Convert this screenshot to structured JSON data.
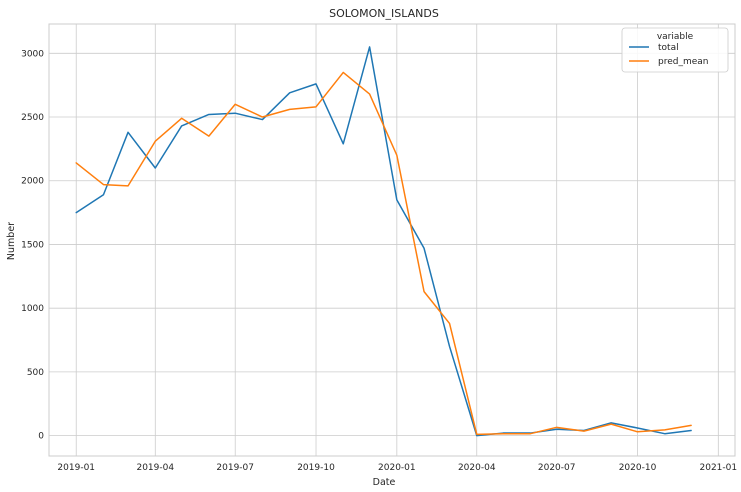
{
  "chart_data": {
    "type": "line",
    "title": "SOLOMON_ISLANDS",
    "xlabel": "Date",
    "ylabel": "Number",
    "x": [
      "2019-01",
      "2019-02",
      "2019-03",
      "2019-04",
      "2019-05",
      "2019-06",
      "2019-07",
      "2019-08",
      "2019-09",
      "2019-10",
      "2019-11",
      "2019-12",
      "2020-01",
      "2020-02",
      "2020-03",
      "2020-04",
      "2020-05",
      "2020-06",
      "2020-07",
      "2020-08",
      "2020-09",
      "2020-10",
      "2020-11",
      "2020-12"
    ],
    "series": [
      {
        "name": "total",
        "color": "#1f77b4",
        "values": [
          1750,
          1890,
          2380,
          2100,
          2430,
          2520,
          2530,
          2480,
          2690,
          2760,
          2290,
          3050,
          1850,
          1470,
          700,
          0,
          20,
          20,
          50,
          40,
          100,
          60,
          15,
          40
        ]
      },
      {
        "name": "pred_mean",
        "color": "#ff7f0e",
        "values": [
          2140,
          1970,
          1960,
          2310,
          2490,
          2350,
          2600,
          2500,
          2560,
          2580,
          2850,
          2680,
          2200,
          1130,
          880,
          10,
          15,
          15,
          65,
          35,
          90,
          30,
          45,
          80
        ]
      }
    ],
    "x_ticks": [
      "2019-01",
      "2019-04",
      "2019-07",
      "2019-10",
      "2020-01",
      "2020-04",
      "2020-07",
      "2020-10",
      "2021-01"
    ],
    "y_ticks": [
      0,
      500,
      1000,
      1500,
      2000,
      2500,
      3000
    ],
    "ylim": [
      -160,
      3230
    ],
    "xlim": [
      "2018-12-01",
      "2021-01-20"
    ],
    "grid": true,
    "legend": {
      "title": "variable",
      "placement": "top-right"
    }
  }
}
